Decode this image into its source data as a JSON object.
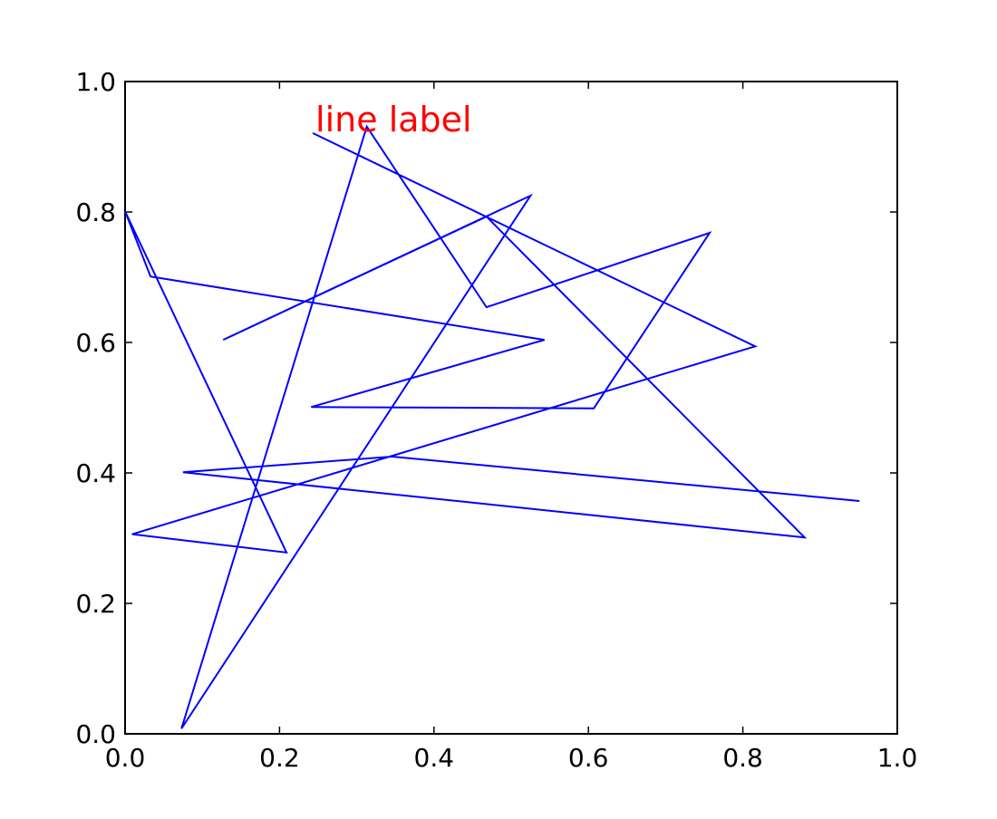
{
  "chart_data": {
    "type": "line",
    "x": [
      0.243,
      0.816,
      0.009,
      0.209,
      0.0,
      0.033,
      0.543,
      0.241,
      0.607,
      0.757,
      0.468,
      0.313,
      0.073,
      0.525,
      0.127,
      0.468,
      0.88,
      0.075,
      0.346,
      0.951
    ],
    "values": [
      0.921,
      0.594,
      0.306,
      0.278,
      0.801,
      0.701,
      0.604,
      0.501,
      0.499,
      0.768,
      0.654,
      0.931,
      0.008,
      0.825,
      0.604,
      0.793,
      0.301,
      0.401,
      0.425,
      0.357
    ],
    "color": "#0000ff",
    "annotations": [
      {
        "text": "line label",
        "x": 0.243,
        "y": 0.921,
        "color": "#ff0000"
      }
    ],
    "xlim": [
      0,
      1
    ],
    "ylim": [
      0,
      1
    ],
    "xticks": [
      {
        "value": 0,
        "label": "0.0"
      },
      {
        "value": 0.2,
        "label": "0.2"
      },
      {
        "value": 0.4,
        "label": "0.4"
      },
      {
        "value": 0.6,
        "label": "0.6"
      },
      {
        "value": 0.8,
        "label": "0.8"
      },
      {
        "value": 1,
        "label": "1.0"
      }
    ],
    "yticks": [
      {
        "value": 0,
        "label": "0.0"
      },
      {
        "value": 0.2,
        "label": "0.2"
      },
      {
        "value": 0.4,
        "label": "0.4"
      },
      {
        "value": 0.6,
        "label": "0.6"
      },
      {
        "value": 0.8,
        "label": "0.8"
      },
      {
        "value": 1,
        "label": "1.0"
      }
    ],
    "grid": false
  }
}
